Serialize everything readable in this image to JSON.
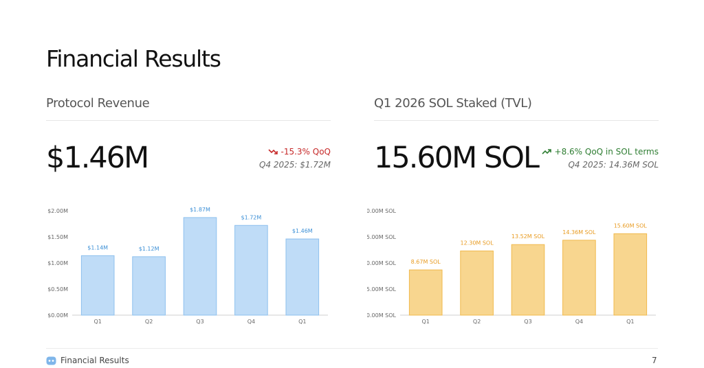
{
  "page": {
    "title": "Financial Results"
  },
  "revenue": {
    "heading": "Protocol Revenue",
    "value": "$1.46M",
    "change": "-15.3% QoQ",
    "previous": "Q4 2025: $1.72M",
    "change_icon": "trend-down-icon",
    "change_color": "#c62828"
  },
  "staked": {
    "heading": "Q1 2026 SOL Staked (TVL)",
    "value": "15.60M SOL",
    "change": "+8.6% QoQ in SOL terms",
    "previous": "Q4 2025: 14.36M SOL",
    "change_icon": "trend-up-icon",
    "change_color": "#2e7d32"
  },
  "chart_data": [
    {
      "type": "bar",
      "categories": [
        "Q1",
        "Q2",
        "Q3",
        "Q4",
        "Q1"
      ],
      "values": [
        1.14,
        1.12,
        1.87,
        1.72,
        1.46
      ],
      "data_labels": [
        "$1.14M",
        "$1.12M",
        "$1.87M",
        "$1.72M",
        "$1.46M"
      ],
      "ylim": [
        0,
        2.0
      ],
      "yticks": [
        0,
        0.5,
        1.0,
        1.5,
        2.0
      ],
      "ytick_labels": [
        "$0.00M",
        "$0.50M",
        "$1.00M",
        "$1.50M",
        "$2.00M"
      ],
      "grid": false,
      "bar_fill": "#bfdcf7",
      "bar_stroke": "#8ec0ee",
      "label_color": "#3b8fd6"
    },
    {
      "type": "bar",
      "categories": [
        "Q1",
        "Q2",
        "Q3",
        "Q4",
        "Q1"
      ],
      "values": [
        8.67,
        12.3,
        13.52,
        14.36,
        15.6
      ],
      "data_labels": [
        "8.67M SOL",
        "12.30M SOL",
        "13.52M SOL",
        "14.36M SOL",
        "15.60M SOL"
      ],
      "ylim": [
        0,
        20
      ],
      "yticks": [
        0,
        5,
        10,
        15,
        20
      ],
      "ytick_labels": [
        "0.00M SOL",
        "5.00M SOL",
        "10.00M SOL",
        "15.00M SOL",
        "20.00M SOL"
      ],
      "grid": false,
      "bar_fill": "#f8d68f",
      "bar_stroke": "#f0b94d",
      "label_color": "#e89a1f"
    }
  ],
  "footer": {
    "label": "Financial Results",
    "page_number": "7",
    "icon": "logo-icon"
  }
}
